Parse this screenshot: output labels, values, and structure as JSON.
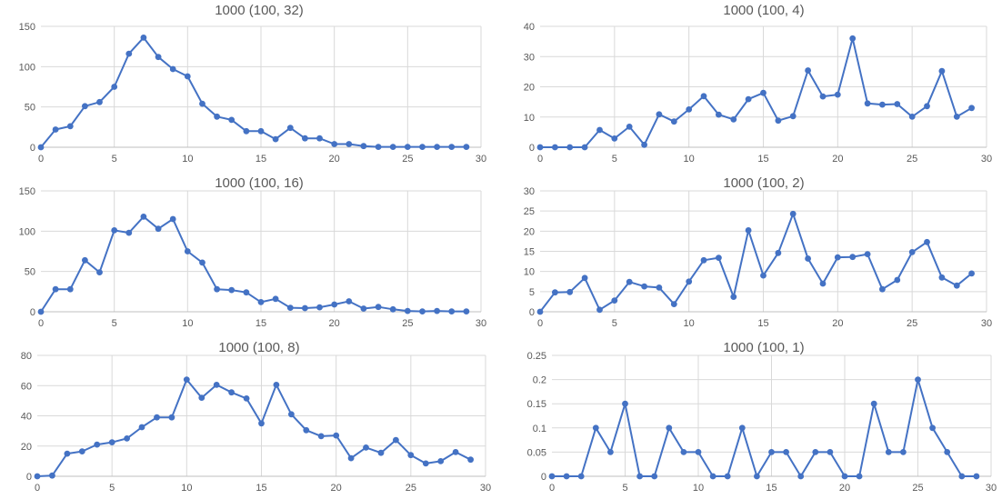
{
  "series_color": "#4472C4",
  "chart_data": [
    {
      "type": "line",
      "title": "1000 (100, 32)",
      "xlabel": "",
      "ylabel": "",
      "x": [
        0,
        1,
        2,
        3,
        4,
        5,
        6,
        7,
        8,
        9,
        10,
        11,
        12,
        13,
        14,
        15,
        16,
        17,
        18,
        19,
        20,
        21,
        22,
        23,
        24,
        25,
        26,
        27,
        28,
        29
      ],
      "values": [
        0,
        22,
        26,
        51,
        56,
        75,
        116,
        136,
        112,
        97,
        88,
        54,
        38,
        34,
        20,
        20,
        10,
        24,
        11,
        11,
        4,
        4,
        1.5,
        0.5,
        0.5,
        0.5,
        0.5,
        0.5,
        0.5,
        0.5
      ],
      "xlim": [
        0,
        30
      ],
      "ylim": [
        0,
        150
      ],
      "xticks": [
        0,
        5,
        10,
        15,
        20,
        25,
        30
      ],
      "yticks": [
        0,
        50,
        100,
        150
      ],
      "ytick_labels": [
        "0",
        "50",
        "100",
        "150"
      ],
      "grid": true
    },
    {
      "type": "line",
      "title": "1000 (100, 4)",
      "xlabel": "",
      "ylabel": "",
      "x": [
        0,
        1,
        2,
        3,
        4,
        5,
        6,
        7,
        8,
        9,
        10,
        11,
        12,
        13,
        14,
        15,
        16,
        17,
        18,
        19,
        20,
        21,
        22,
        23,
        24,
        25,
        26,
        27,
        28,
        29
      ],
      "values": [
        0,
        0,
        0,
        0,
        5.7,
        2.9,
        6.8,
        0.8,
        10.9,
        8.5,
        12.5,
        16.9,
        10.8,
        9.2,
        15.9,
        18,
        8.8,
        10.3,
        25.4,
        16.8,
        17.4,
        36,
        14.5,
        14.1,
        14.3,
        10.1,
        13.6,
        25.2,
        10.1,
        13
      ],
      "xlim": [
        0,
        30
      ],
      "ylim": [
        0,
        40
      ],
      "xticks": [
        0,
        5,
        10,
        15,
        20,
        25,
        30
      ],
      "yticks": [
        0,
        10,
        20,
        30,
        40
      ],
      "ytick_labels": [
        "0",
        "10",
        "20",
        "30",
        "40"
      ],
      "grid": true
    },
    {
      "type": "line",
      "title": "1000 (100, 16)",
      "xlabel": "",
      "ylabel": "",
      "x": [
        0,
        1,
        2,
        3,
        4,
        5,
        6,
        7,
        8,
        9,
        10,
        11,
        12,
        13,
        14,
        15,
        16,
        17,
        18,
        19,
        20,
        21,
        22,
        23,
        24,
        25,
        26,
        27,
        28,
        29
      ],
      "values": [
        0,
        28,
        28,
        64,
        49,
        101,
        98,
        118,
        103,
        115,
        75,
        61,
        28,
        27,
        24,
        12,
        16,
        5,
        4.5,
        5.5,
        9,
        13,
        4,
        6,
        3,
        1,
        0.5,
        1,
        0.5,
        0.5
      ],
      "xlim": [
        0,
        30
      ],
      "ylim": [
        0,
        150
      ],
      "xticks": [
        0,
        5,
        10,
        15,
        20,
        25,
        30
      ],
      "yticks": [
        0,
        50,
        100,
        150
      ],
      "ytick_labels": [
        "0",
        "50",
        "100",
        "150"
      ],
      "grid": true
    },
    {
      "type": "line",
      "title": "1000 (100, 2)",
      "xlabel": "",
      "ylabel": "",
      "x": [
        0,
        1,
        2,
        3,
        4,
        5,
        6,
        7,
        8,
        9,
        10,
        11,
        12,
        13,
        14,
        15,
        16,
        17,
        18,
        19,
        20,
        21,
        22,
        23,
        24,
        25,
        26,
        27,
        28,
        29
      ],
      "values": [
        0,
        4.8,
        4.9,
        8.4,
        0.5,
        2.8,
        7.4,
        6.3,
        6,
        1.9,
        7.5,
        12.8,
        13.4,
        3.7,
        20.2,
        9,
        14.6,
        24.3,
        13.2,
        7,
        13.5,
        13.6,
        14.3,
        5.6,
        7.9,
        14.8,
        17.3,
        8.5,
        6.5,
        9.5
      ],
      "xlim": [
        0,
        30
      ],
      "ylim": [
        0,
        30
      ],
      "xticks": [
        0,
        5,
        10,
        15,
        20,
        25,
        30
      ],
      "yticks": [
        0,
        5,
        10,
        15,
        20,
        25,
        30
      ],
      "ytick_labels": [
        "0",
        "5",
        "10",
        "15",
        "20",
        "25",
        "30"
      ],
      "grid": true
    },
    {
      "type": "line",
      "title": "1000 (100, 8)",
      "xlabel": "",
      "ylabel": "",
      "x": [
        0,
        1,
        2,
        3,
        4,
        5,
        6,
        7,
        8,
        9,
        10,
        11,
        12,
        13,
        14,
        15,
        16,
        17,
        18,
        19,
        20,
        21,
        22,
        23,
        24,
        25,
        26,
        27,
        28,
        29
      ],
      "values": [
        0,
        0.5,
        15,
        16.5,
        21,
        22.5,
        25,
        32.5,
        39,
        39,
        64,
        52,
        60.5,
        55.5,
        51.5,
        35,
        60.5,
        41,
        30.5,
        26.5,
        27,
        12,
        19,
        15.5,
        24,
        14,
        8.5,
        10,
        16,
        11
      ],
      "xlim": [
        0,
        30
      ],
      "ylim": [
        0,
        80
      ],
      "xticks": [
        0,
        5,
        10,
        15,
        20,
        25,
        30
      ],
      "yticks": [
        0,
        20,
        40,
        60,
        80
      ],
      "ytick_labels": [
        "0",
        "20",
        "40",
        "60",
        "80"
      ],
      "grid": true
    },
    {
      "type": "line",
      "title": "1000 (100, 1)",
      "xlabel": "",
      "ylabel": "",
      "x": [
        0,
        1,
        2,
        3,
        4,
        5,
        6,
        7,
        8,
        9,
        10,
        11,
        12,
        13,
        14,
        15,
        16,
        17,
        18,
        19,
        20,
        21,
        22,
        23,
        24,
        25,
        26,
        27,
        28,
        29
      ],
      "values": [
        0,
        0,
        0,
        0.1,
        0.05,
        0.15,
        0,
        0,
        0.1,
        0.05,
        0.05,
        0,
        0,
        0.1,
        0,
        0.05,
        0.05,
        0,
        0.05,
        0.05,
        0,
        0,
        0.15,
        0.05,
        0.05,
        0.2,
        0.1,
        0.05,
        0,
        0
      ],
      "xlim": [
        0,
        30
      ],
      "ylim": [
        0,
        0.25
      ],
      "xticks": [
        0,
        5,
        10,
        15,
        20,
        25,
        30
      ],
      "yticks": [
        0,
        0.05,
        0.1,
        0.15,
        0.2,
        0.25
      ],
      "ytick_labels": [
        "0",
        "0.05",
        "0.1",
        "0.15",
        "0.2",
        "0.25"
      ],
      "grid": true
    }
  ]
}
